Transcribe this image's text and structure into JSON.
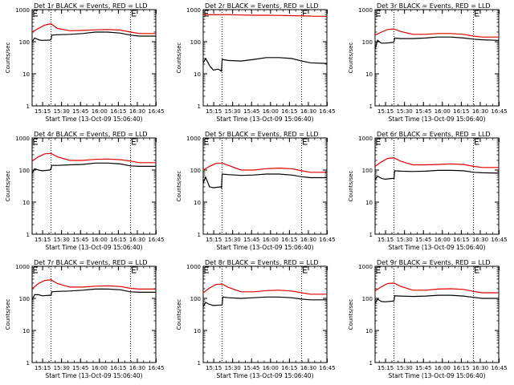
{
  "chart_data": [
    {
      "type": "line",
      "title": "Det 1r BLACK = Events, RED = LLD",
      "xlabel": "Start Time (13-Oct-09 15:06:40)",
      "ylabel": "Counts/sec",
      "x_ticks": [
        "15:15",
        "15:30",
        "15:45",
        "16:00",
        "16:15",
        "16:30",
        "16:45"
      ],
      "y_ticks": [
        "1",
        "10",
        "100",
        "1000"
      ],
      "ylog": true,
      "ylim": [
        1,
        1000
      ],
      "xlim_min": [
        0,
        98
      ],
      "vlines_min": [
        15,
        78
      ],
      "e_marker_min": 78,
      "series": [
        {
          "color": "#000000",
          "x": [
            0,
            2,
            6,
            8,
            14,
            15,
            15.5,
            20,
            30,
            40,
            50,
            60,
            70,
            78,
            85,
            98
          ],
          "y": [
            100,
            130,
            112,
            110,
            112,
            118,
            160,
            165,
            170,
            180,
            200,
            200,
            185,
            160,
            150,
            150
          ]
        },
        {
          "color": "#e00000",
          "x": [
            0,
            5,
            10,
            15,
            20,
            30,
            40,
            50,
            60,
            70,
            78,
            85,
            98
          ],
          "y": [
            200,
            260,
            330,
            360,
            260,
            220,
            225,
            235,
            240,
            230,
            200,
            180,
            180
          ]
        }
      ]
    },
    {
      "type": "line",
      "title": "Det 2r BLACK = Events, RED = LLD",
      "xlabel": "Start Time (13-Oct-09 15:06:40)",
      "ylabel": "Counts/sec",
      "x_ticks": [
        "15:15",
        "15:30",
        "15:45",
        "16:00",
        "16:15",
        "16:30",
        "16:45"
      ],
      "y_ticks": [
        "1",
        "10",
        "100",
        "1000"
      ],
      "ylog": true,
      "ylim": [
        1,
        1000
      ],
      "xlim_min": [
        0,
        98
      ],
      "vlines_min": [
        15,
        78
      ],
      "e_marker_min": 78,
      "series": [
        {
          "color": "#000000",
          "x": [
            0,
            2,
            5,
            8,
            12,
            14.5,
            15,
            20,
            30,
            40,
            50,
            60,
            70,
            78,
            85,
            98
          ],
          "y": [
            22,
            30,
            18,
            13,
            14,
            12,
            28,
            26,
            25,
            28,
            32,
            32,
            30,
            25,
            22,
            21
          ]
        },
        {
          "color": "#e00000",
          "x": [
            0,
            10,
            20,
            30,
            40,
            50,
            60,
            70,
            80,
            90,
            98
          ],
          "y": [
            700,
            690,
            700,
            680,
            670,
            670,
            660,
            650,
            640,
            620,
            620
          ]
        }
      ]
    },
    {
      "type": "line",
      "title": "Det 3r BLACK = Events, RED = LLD",
      "xlabel": "Start Time (13-Oct-09 15:06:40)",
      "ylabel": "Counts/sec",
      "x_ticks": [
        "15:15",
        "15:30",
        "15:45",
        "16:00",
        "16:15",
        "16:30",
        "16:45"
      ],
      "y_ticks": [
        "1",
        "10",
        "100",
        "1000"
      ],
      "ylog": true,
      "ylim": [
        1,
        1000
      ],
      "xlim_min": [
        0,
        98
      ],
      "vlines_min": [
        15,
        78
      ],
      "e_marker_min": 78,
      "series": [
        {
          "color": "#000000",
          "x": [
            0,
            2,
            5,
            8,
            14,
            15,
            15.5,
            20,
            30,
            40,
            50,
            60,
            70,
            78,
            85,
            98
          ],
          "y": [
            60,
            110,
            90,
            90,
            95,
            100,
            130,
            125,
            125,
            130,
            140,
            140,
            130,
            120,
            115,
            110
          ]
        },
        {
          "color": "#e00000",
          "x": [
            0,
            5,
            10,
            15,
            20,
            30,
            40,
            50,
            60,
            70,
            78,
            85,
            98
          ],
          "y": [
            160,
            200,
            240,
            250,
            210,
            170,
            170,
            180,
            180,
            170,
            150,
            140,
            140
          ]
        }
      ]
    },
    {
      "type": "line",
      "title": "Det 4r BLACK = Events, RED = LLD",
      "xlabel": "Start Time (13-Oct-09 15:06:40)",
      "ylabel": "Counts/sec",
      "x_ticks": [
        "15:15",
        "15:30",
        "15:45",
        "16:00",
        "16:15",
        "16:30",
        "16:45"
      ],
      "y_ticks": [
        "1",
        "10",
        "100",
        "1000"
      ],
      "ylog": true,
      "ylim": [
        1,
        1000
      ],
      "xlim_min": [
        0,
        98
      ],
      "vlines_min": [
        15,
        78
      ],
      "e_marker_min": 78,
      "series": [
        {
          "color": "#000000",
          "x": [
            0,
            2,
            5,
            8,
            14,
            15,
            15.5,
            20,
            30,
            40,
            50,
            60,
            70,
            78,
            85,
            98
          ],
          "y": [
            80,
            110,
            100,
            95,
            100,
            110,
            140,
            140,
            145,
            150,
            165,
            165,
            155,
            135,
            130,
            130
          ]
        },
        {
          "color": "#e00000",
          "x": [
            0,
            5,
            10,
            15,
            20,
            30,
            40,
            50,
            60,
            70,
            78,
            85,
            98
          ],
          "y": [
            190,
            260,
            320,
            330,
            260,
            200,
            200,
            215,
            220,
            210,
            190,
            170,
            170
          ]
        }
      ]
    },
    {
      "type": "line",
      "title": "Det 5r BLACK = Events, RED = LLD",
      "xlabel": "Start Time (13-Oct-09 15:06:40)",
      "ylabel": "Counts/sec",
      "x_ticks": [
        "15:15",
        "15:30",
        "15:45",
        "16:00",
        "16:15",
        "16:30",
        "16:45"
      ],
      "y_ticks": [
        "1",
        "10",
        "100",
        "1000"
      ],
      "ylog": true,
      "ylim": [
        1,
        1000
      ],
      "xlim_min": [
        0,
        98
      ],
      "vlines_min": [
        15,
        78
      ],
      "e_marker_min": 78,
      "series": [
        {
          "color": "#000000",
          "x": [
            0,
            2,
            5,
            8,
            14,
            14.5,
            15,
            20,
            30,
            40,
            50,
            60,
            70,
            78,
            85,
            98
          ],
          "y": [
            40,
            60,
            30,
            28,
            30,
            28,
            75,
            72,
            68,
            70,
            75,
            75,
            70,
            62,
            58,
            58
          ]
        },
        {
          "color": "#e00000",
          "x": [
            0,
            5,
            10,
            15,
            20,
            30,
            40,
            50,
            60,
            70,
            78,
            85,
            98
          ],
          "y": [
            100,
            130,
            160,
            165,
            140,
            100,
            100,
            110,
            115,
            110,
            95,
            85,
            85
          ]
        }
      ]
    },
    {
      "type": "line",
      "title": "Det 6r BLACK = Events, RED = LLD",
      "xlabel": "Start Time (13-Oct-09 15:06:40)",
      "ylabel": "Counts/sec",
      "x_ticks": [
        "15:15",
        "15:30",
        "15:45",
        "16:00",
        "16:15",
        "16:30",
        "16:45"
      ],
      "y_ticks": [
        "1",
        "10",
        "100",
        "1000"
      ],
      "ylog": true,
      "ylim": [
        1,
        1000
      ],
      "xlim_min": [
        0,
        98
      ],
      "vlines_min": [
        15,
        78
      ],
      "e_marker_min": 78,
      "series": [
        {
          "color": "#000000",
          "x": [
            0,
            2,
            5,
            8,
            14,
            15,
            15.5,
            20,
            30,
            40,
            50,
            60,
            70,
            78,
            85,
            98
          ],
          "y": [
            50,
            65,
            55,
            52,
            55,
            55,
            95,
            92,
            90,
            92,
            98,
            98,
            95,
            85,
            82,
            80
          ]
        },
        {
          "color": "#e00000",
          "x": [
            0,
            5,
            10,
            15,
            20,
            30,
            40,
            50,
            60,
            70,
            78,
            85,
            98
          ],
          "y": [
            130,
            180,
            230,
            240,
            190,
            145,
            145,
            150,
            155,
            150,
            130,
            120,
            120
          ]
        }
      ]
    },
    {
      "type": "line",
      "title": "Det 7r BLACK = Events, RED = LLD",
      "xlabel": "Start Time (13-Oct-09 15:06:40)",
      "ylabel": "Counts/sec",
      "x_ticks": [
        "15:15",
        "15:30",
        "15:45",
        "16:00",
        "16:15",
        "16:30",
        "16:45"
      ],
      "y_ticks": [
        "1",
        "10",
        "100",
        "1000"
      ],
      "ylog": true,
      "ylim": [
        1,
        1000
      ],
      "xlim_min": [
        0,
        98
      ],
      "vlines_min": [
        15,
        78
      ],
      "e_marker_min": 78,
      "series": [
        {
          "color": "#000000",
          "x": [
            0,
            2,
            5,
            8,
            14,
            15,
            15.5,
            20,
            30,
            40,
            50,
            60,
            70,
            78,
            85,
            98
          ],
          "y": [
            90,
            130,
            130,
            120,
            125,
            125,
            160,
            165,
            170,
            180,
            195,
            195,
            185,
            160,
            155,
            155
          ]
        },
        {
          "color": "#e00000",
          "x": [
            0,
            5,
            10,
            15,
            20,
            30,
            40,
            50,
            60,
            70,
            78,
            85,
            98
          ],
          "y": [
            200,
            290,
            360,
            380,
            290,
            225,
            225,
            240,
            245,
            235,
            205,
            195,
            195
          ]
        }
      ]
    },
    {
      "type": "line",
      "title": "Det 8r BLACK = Events, RED = LLD",
      "xlabel": "Start Time (13-Oct-09 15:06:40)",
      "ylabel": "Counts/sec",
      "x_ticks": [
        "15:15",
        "15:30",
        "15:45",
        "16:00",
        "16:15",
        "16:30",
        "16:45"
      ],
      "y_ticks": [
        "1",
        "10",
        "100",
        "1000"
      ],
      "ylog": true,
      "ylim": [
        1,
        1000
      ],
      "xlim_min": [
        0,
        98
      ],
      "vlines_min": [
        15,
        78
      ],
      "e_marker_min": 78,
      "series": [
        {
          "color": "#000000",
          "x": [
            0,
            2,
            5,
            8,
            14,
            15,
            15.5,
            20,
            30,
            40,
            50,
            60,
            70,
            78,
            85,
            98
          ],
          "y": [
            55,
            75,
            65,
            60,
            62,
            62,
            110,
            105,
            100,
            105,
            110,
            110,
            105,
            95,
            90,
            90
          ]
        },
        {
          "color": "#e00000",
          "x": [
            0,
            5,
            10,
            15,
            20,
            30,
            40,
            50,
            60,
            70,
            78,
            85,
            98
          ],
          "y": [
            150,
            210,
            270,
            280,
            220,
            160,
            160,
            175,
            180,
            170,
            150,
            135,
            135
          ]
        }
      ]
    },
    {
      "type": "line",
      "title": "Det 9r BLACK = Events, RED = LLD",
      "xlabel": "Start Time (13-Oct-09 15:06:40)",
      "ylabel": "Counts/sec",
      "x_ticks": [
        "15:15",
        "15:30",
        "15:45",
        "16:00",
        "16:15",
        "16:30",
        "16:45"
      ],
      "y_ticks": [
        "1",
        "10",
        "100",
        "1000"
      ],
      "ylog": true,
      "ylim": [
        1,
        1000
      ],
      "xlim_min": [
        0,
        98
      ],
      "vlines_min": [
        15,
        78
      ],
      "e_marker_min": 78,
      "series": [
        {
          "color": "#000000",
          "x": [
            0,
            2,
            5,
            8,
            14,
            15,
            15.5,
            20,
            30,
            40,
            50,
            60,
            70,
            78,
            85,
            98
          ],
          "y": [
            70,
            95,
            80,
            78,
            82,
            82,
            120,
            118,
            115,
            118,
            125,
            125,
            118,
            108,
            100,
            100
          ]
        },
        {
          "color": "#e00000",
          "x": [
            0,
            5,
            10,
            15,
            20,
            30,
            40,
            50,
            60,
            70,
            78,
            85,
            98
          ],
          "y": [
            170,
            230,
            290,
            300,
            240,
            180,
            180,
            195,
            200,
            190,
            165,
            150,
            150
          ]
        }
      ]
    }
  ]
}
